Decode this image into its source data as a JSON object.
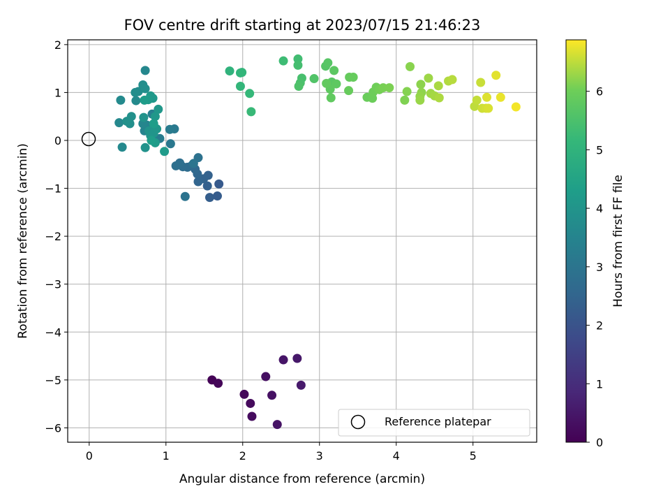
{
  "chart_data": {
    "type": "scatter",
    "title": "FOV centre drift starting at 2023/07/15 21:46:23",
    "xlabel": "Angular distance from reference (arcmin)",
    "ylabel": "Rotation from reference (arcmin)",
    "xlim": [
      -0.28,
      5.83
    ],
    "ylim": [
      -6.3,
      2.1
    ],
    "xticks": [
      0,
      1,
      2,
      3,
      4,
      5
    ],
    "yticks": [
      2,
      1,
      0,
      -1,
      -2,
      -3,
      -4,
      -5,
      -6
    ],
    "xtick_labels": [
      "0",
      "1",
      "2",
      "3",
      "4",
      "5"
    ],
    "ytick_labels": [
      "2",
      "1",
      "0",
      "−1",
      "−2",
      "−3",
      "−4",
      "−5",
      "−6"
    ],
    "grid": true,
    "colormap": "viridis",
    "colorbar": {
      "label": "Hours from first FF file",
      "range": [
        0,
        6.88
      ],
      "ticks": [
        0,
        1,
        2,
        3,
        4,
        5,
        6
      ],
      "tick_labels": [
        "0",
        "1",
        "2",
        "3",
        "4",
        "5",
        "6"
      ]
    },
    "legend": {
      "position": "bottom-right",
      "entries": [
        "Reference platepar"
      ]
    },
    "reference_point": {
      "x": 0,
      "y": 0
    },
    "points": [
      {
        "x": 1.6,
        "y": -5.0,
        "t": 0.05
      },
      {
        "x": 1.68,
        "y": -5.07,
        "t": 0.1
      },
      {
        "x": 2.02,
        "y": -5.3,
        "t": 0.15
      },
      {
        "x": 2.1,
        "y": -5.49,
        "t": 0.2
      },
      {
        "x": 2.12,
        "y": -5.76,
        "t": 0.25
      },
      {
        "x": 2.3,
        "y": -4.93,
        "t": 0.3
      },
      {
        "x": 2.38,
        "y": -5.32,
        "t": 0.35
      },
      {
        "x": 2.45,
        "y": -5.93,
        "t": 0.4
      },
      {
        "x": 2.53,
        "y": -4.58,
        "t": 0.45
      },
      {
        "x": 2.71,
        "y": -4.55,
        "t": 0.5
      },
      {
        "x": 2.76,
        "y": -5.11,
        "t": 0.55
      },
      {
        "x": 1.69,
        "y": -0.91,
        "t": 2.2
      },
      {
        "x": 1.67,
        "y": -1.16,
        "t": 2.25
      },
      {
        "x": 1.57,
        "y": -1.19,
        "t": 2.3
      },
      {
        "x": 1.54,
        "y": -0.95,
        "t": 2.35
      },
      {
        "x": 1.55,
        "y": -0.73,
        "t": 2.4
      },
      {
        "x": 1.49,
        "y": -0.8,
        "t": 2.45
      },
      {
        "x": 1.42,
        "y": -0.86,
        "t": 2.5
      },
      {
        "x": 1.41,
        "y": -0.7,
        "t": 2.55
      },
      {
        "x": 1.38,
        "y": -0.6,
        "t": 2.6
      },
      {
        "x": 1.34,
        "y": -0.52,
        "t": 2.65
      },
      {
        "x": 1.28,
        "y": -0.56,
        "t": 2.7
      },
      {
        "x": 1.22,
        "y": -0.55,
        "t": 2.75
      },
      {
        "x": 1.18,
        "y": -0.47,
        "t": 2.8
      },
      {
        "x": 1.13,
        "y": -0.53,
        "t": 2.85
      },
      {
        "x": 1.42,
        "y": -0.36,
        "t": 2.9
      },
      {
        "x": 1.25,
        "y": -1.17,
        "t": 2.95
      },
      {
        "x": 1.36,
        "y": -0.48,
        "t": 3.0
      },
      {
        "x": 1.06,
        "y": -0.07,
        "t": 3.1
      },
      {
        "x": 1.11,
        "y": 0.24,
        "t": 3.15
      },
      {
        "x": 1.05,
        "y": 0.23,
        "t": 3.2
      },
      {
        "x": 0.92,
        "y": 0.04,
        "t": 3.25
      },
      {
        "x": 0.85,
        "y": -0.02,
        "t": 3.3
      },
      {
        "x": 0.82,
        "y": 0.55,
        "t": 3.35
      },
      {
        "x": 0.79,
        "y": 0.3,
        "t": 3.4
      },
      {
        "x": 0.75,
        "y": 0.32,
        "t": 3.45
      },
      {
        "x": 0.72,
        "y": 0.2,
        "t": 3.5
      },
      {
        "x": 0.7,
        "y": 0.35,
        "t": 3.55
      },
      {
        "x": 0.73,
        "y": 1.46,
        "t": 3.6
      },
      {
        "x": 0.39,
        "y": 0.37,
        "t": 3.62
      },
      {
        "x": 0.43,
        "y": -0.14,
        "t": 3.65
      },
      {
        "x": 0.41,
        "y": 0.84,
        "t": 3.68
      },
      {
        "x": 0.61,
        "y": 0.83,
        "t": 3.7
      },
      {
        "x": 0.64,
        "y": 1.02,
        "t": 3.75
      },
      {
        "x": 0.6,
        "y": 1.0,
        "t": 3.78
      },
      {
        "x": 0.7,
        "y": 1.16,
        "t": 3.8
      },
      {
        "x": 0.73,
        "y": 1.08,
        "t": 3.83
      },
      {
        "x": 0.53,
        "y": 0.35,
        "t": 3.85
      },
      {
        "x": 0.55,
        "y": 0.5,
        "t": 3.88
      },
      {
        "x": 0.49,
        "y": 0.4,
        "t": 3.9
      },
      {
        "x": 0.73,
        "y": -0.15,
        "t": 3.92
      },
      {
        "x": 0.71,
        "y": 0.48,
        "t": 3.95
      },
      {
        "x": 0.78,
        "y": 0.2,
        "t": 3.97
      },
      {
        "x": 0.8,
        "y": 0.1,
        "t": 4.0
      },
      {
        "x": 0.84,
        "y": 0.15,
        "t": 4.02
      },
      {
        "x": 0.88,
        "y": 0.24,
        "t": 4.05
      },
      {
        "x": 0.9,
        "y": 0.65,
        "t": 4.08
      },
      {
        "x": 0.86,
        "y": 0.5,
        "t": 4.1
      },
      {
        "x": 0.83,
        "y": 0.88,
        "t": 4.12
      },
      {
        "x": 0.8,
        "y": 0.93,
        "t": 4.15
      },
      {
        "x": 0.77,
        "y": 0.85,
        "t": 4.18
      },
      {
        "x": 0.98,
        "y": -0.23,
        "t": 4.2
      },
      {
        "x": 0.86,
        "y": -0.05,
        "t": 4.22
      },
      {
        "x": 0.72,
        "y": 0.84,
        "t": 4.25
      },
      {
        "x": 0.84,
        "y": 0.35,
        "t": 4.28
      },
      {
        "x": 0.81,
        "y": 0.0,
        "t": 4.3
      },
      {
        "x": 1.83,
        "y": 1.45,
        "t": 5.0
      },
      {
        "x": 1.97,
        "y": 1.41,
        "t": 5.05
      },
      {
        "x": 1.99,
        "y": 1.42,
        "t": 5.08
      },
      {
        "x": 1.97,
        "y": 1.13,
        "t": 5.1
      },
      {
        "x": 2.09,
        "y": 0.98,
        "t": 5.15
      },
      {
        "x": 2.11,
        "y": 0.6,
        "t": 5.2
      },
      {
        "x": 2.53,
        "y": 1.66,
        "t": 5.3
      },
      {
        "x": 2.72,
        "y": 1.7,
        "t": 5.35
      },
      {
        "x": 2.72,
        "y": 1.57,
        "t": 5.4
      },
      {
        "x": 2.77,
        "y": 1.3,
        "t": 5.45
      },
      {
        "x": 2.75,
        "y": 1.2,
        "t": 5.5
      },
      {
        "x": 2.73,
        "y": 1.13,
        "t": 5.55
      },
      {
        "x": 2.93,
        "y": 1.29,
        "t": 5.6
      },
      {
        "x": 3.08,
        "y": 1.55,
        "t": 5.65
      },
      {
        "x": 3.11,
        "y": 1.62,
        "t": 5.68
      },
      {
        "x": 3.13,
        "y": 1.18,
        "t": 5.7
      },
      {
        "x": 3.16,
        "y": 1.22,
        "t": 5.72
      },
      {
        "x": 3.19,
        "y": 1.46,
        "t": 5.75
      },
      {
        "x": 3.22,
        "y": 1.18,
        "t": 5.78
      },
      {
        "x": 3.14,
        "y": 1.07,
        "t": 5.8
      },
      {
        "x": 3.15,
        "y": 0.89,
        "t": 5.82
      },
      {
        "x": 3.09,
        "y": 1.19,
        "t": 5.85
      },
      {
        "x": 3.39,
        "y": 1.32,
        "t": 5.88
      },
      {
        "x": 3.44,
        "y": 1.32,
        "t": 5.9
      },
      {
        "x": 3.38,
        "y": 1.04,
        "t": 5.92
      },
      {
        "x": 3.62,
        "y": 0.9,
        "t": 5.95
      },
      {
        "x": 3.69,
        "y": 0.88,
        "t": 5.97
      },
      {
        "x": 3.7,
        "y": 1.01,
        "t": 6.0
      },
      {
        "x": 3.74,
        "y": 1.11,
        "t": 6.02
      },
      {
        "x": 3.78,
        "y": 1.06,
        "t": 6.05
      },
      {
        "x": 3.83,
        "y": 1.1,
        "t": 6.08
      },
      {
        "x": 3.91,
        "y": 1.1,
        "t": 6.1
      },
      {
        "x": 4.11,
        "y": 0.84,
        "t": 6.12
      },
      {
        "x": 4.14,
        "y": 1.02,
        "t": 6.15
      },
      {
        "x": 4.18,
        "y": 1.54,
        "t": 6.18
      },
      {
        "x": 4.32,
        "y": 1.17,
        "t": 6.2
      },
      {
        "x": 4.33,
        "y": 1.0,
        "t": 6.22
      },
      {
        "x": 4.31,
        "y": 0.92,
        "t": 6.25
      },
      {
        "x": 4.31,
        "y": 0.84,
        "t": 6.28
      },
      {
        "x": 4.42,
        "y": 1.3,
        "t": 6.3
      },
      {
        "x": 4.45,
        "y": 0.98,
        "t": 6.32
      },
      {
        "x": 4.5,
        "y": 0.93,
        "t": 6.35
      },
      {
        "x": 4.55,
        "y": 1.14,
        "t": 6.38
      },
      {
        "x": 4.56,
        "y": 0.89,
        "t": 6.4
      },
      {
        "x": 4.68,
        "y": 1.24,
        "t": 6.43
      },
      {
        "x": 4.73,
        "y": 1.27,
        "t": 6.46
      },
      {
        "x": 5.02,
        "y": 0.71,
        "t": 6.5
      },
      {
        "x": 5.05,
        "y": 0.84,
        "t": 6.53
      },
      {
        "x": 5.1,
        "y": 1.21,
        "t": 6.56
      },
      {
        "x": 5.12,
        "y": 0.67,
        "t": 6.6
      },
      {
        "x": 5.17,
        "y": 0.67,
        "t": 6.63
      },
      {
        "x": 5.2,
        "y": 0.67,
        "t": 6.66
      },
      {
        "x": 5.18,
        "y": 0.9,
        "t": 6.69
      },
      {
        "x": 5.3,
        "y": 1.36,
        "t": 6.72
      },
      {
        "x": 5.36,
        "y": 0.9,
        "t": 6.76
      },
      {
        "x": 5.56,
        "y": 0.7,
        "t": 6.82
      }
    ]
  }
}
